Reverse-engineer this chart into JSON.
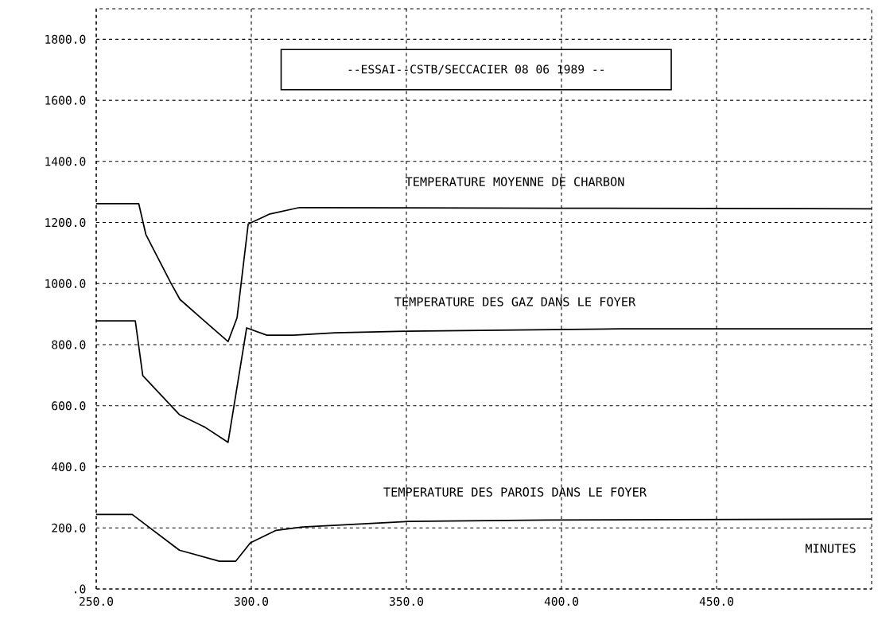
{
  "chart_data": {
    "type": "line",
    "title": "--ESSAI--CSTB/SECCACIER 08 06 1989 --",
    "xlabel": "MINUTES",
    "xlim": [
      250,
      500
    ],
    "ylim": [
      0,
      1900
    ],
    "xticks": [
      {
        "value": 250,
        "label": "250.0"
      },
      {
        "value": 300,
        "label": "300.0"
      },
      {
        "value": 350,
        "label": "350.0"
      },
      {
        "value": 400,
        "label": "400.0"
      },
      {
        "value": 450,
        "label": "450.0"
      }
    ],
    "yticks": [
      {
        "value": 0,
        "label": ".0"
      },
      {
        "value": 200,
        "label": "200.0"
      },
      {
        "value": 400,
        "label": "400.0"
      },
      {
        "value": 600,
        "label": "600.0"
      },
      {
        "value": 800,
        "label": "800.0"
      },
      {
        "value": 1000,
        "label": "1000.0"
      },
      {
        "value": 1200,
        "label": "1200.0"
      },
      {
        "value": 1400,
        "label": "1400.0"
      },
      {
        "value": 1600,
        "label": "1600.0"
      },
      {
        "value": 1800,
        "label": "1800.0"
      }
    ],
    "grid": true,
    "legend": false,
    "marker": "none",
    "line_style": "solid",
    "series": [
      {
        "name": "TEMPERATURE MOYENNE DE CHARBON",
        "color": "#000000",
        "x": [
          250,
          263.7,
          266,
          274,
          277,
          292.5,
          295.4,
          299,
          306,
          315.5,
          400,
          500
        ],
        "values": [
          1262,
          1262,
          1161,
          1003,
          948,
          810,
          888,
          1195,
          1228,
          1249,
          1247,
          1245
        ]
      },
      {
        "name": "TEMPERATURE DES GAZ DANS LE FOYER",
        "color": "#000000",
        "x": [
          250,
          262.6,
          265,
          276.8,
          285,
          292.5,
          298.5,
          305,
          313.6,
          327,
          350.5,
          419,
          500
        ],
        "values": [
          878,
          878,
          699,
          571,
          530,
          480,
          855,
          831,
          831,
          839,
          844,
          852,
          852
        ]
      },
      {
        "name": "TEMPERATURE DES PAROIS DANS LE FOYER",
        "color": "#000000",
        "x": [
          250,
          261.6,
          276.8,
          289.7,
          295,
          299.7,
          308,
          316.5,
          350.5,
          395,
          500
        ],
        "values": [
          244,
          244,
          127,
          91,
          91,
          151,
          192,
          203,
          221,
          226,
          229
        ]
      }
    ]
  }
}
